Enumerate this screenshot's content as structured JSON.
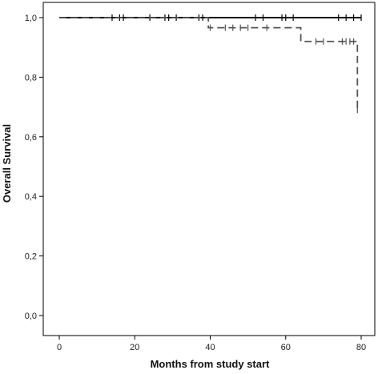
{
  "chart_data": {
    "type": "line",
    "subtype": "kaplan-meier",
    "xlabel": "Months from study start",
    "ylabel": "Overall Survival",
    "xlim": [
      0,
      80
    ],
    "ylim": [
      0.0,
      1.0
    ],
    "x_ticks": [
      0,
      20,
      40,
      60,
      80
    ],
    "x_tick_labels": [
      "0",
      "20",
      "40",
      "60",
      "80"
    ],
    "y_ticks": [
      0.0,
      0.2,
      0.4,
      0.6,
      0.8,
      1.0
    ],
    "y_tick_labels": [
      "0,0",
      "0,2",
      "0,4",
      "0,6",
      "0,8",
      "1,0"
    ],
    "grid": false,
    "legend": "none",
    "series": [
      {
        "style": "solid",
        "color": "#000000",
        "steps": [
          [
            0,
            1.0
          ],
          [
            80,
            1.0
          ]
        ],
        "censored": [
          [
            14,
            1.0
          ],
          [
            16,
            1.0
          ],
          [
            17,
            1.0
          ],
          [
            24,
            1.0
          ],
          [
            28,
            1.0
          ],
          [
            29,
            1.0
          ],
          [
            31,
            1.0
          ],
          [
            37,
            1.0
          ],
          [
            38,
            1.0
          ],
          [
            52,
            1.0
          ],
          [
            54,
            1.0
          ],
          [
            59,
            1.0
          ],
          [
            60,
            1.0
          ],
          [
            62,
            1.0
          ],
          [
            74,
            1.0
          ],
          [
            76,
            1.0
          ],
          [
            78,
            1.0
          ],
          [
            80,
            1.0
          ]
        ]
      },
      {
        "style": "dashed",
        "color": "#555555",
        "steps": [
          [
            0,
            1.0
          ],
          [
            39.5,
            1.0
          ],
          [
            39.5,
            0.966
          ],
          [
            64,
            0.966
          ],
          [
            64,
            0.92
          ],
          [
            79,
            0.92
          ],
          [
            79,
            0.69
          ]
        ],
        "censored": [
          [
            40,
            0.966
          ],
          [
            44,
            0.966
          ],
          [
            46,
            0.966
          ],
          [
            48,
            0.966
          ],
          [
            50,
            0.966
          ],
          [
            55,
            0.966
          ],
          [
            68,
            0.92
          ],
          [
            70,
            0.92
          ],
          [
            75,
            0.92
          ],
          [
            76,
            0.92
          ],
          [
            77,
            0.92
          ],
          [
            78,
            0.92
          ],
          [
            79,
            0.69
          ]
        ]
      }
    ]
  }
}
